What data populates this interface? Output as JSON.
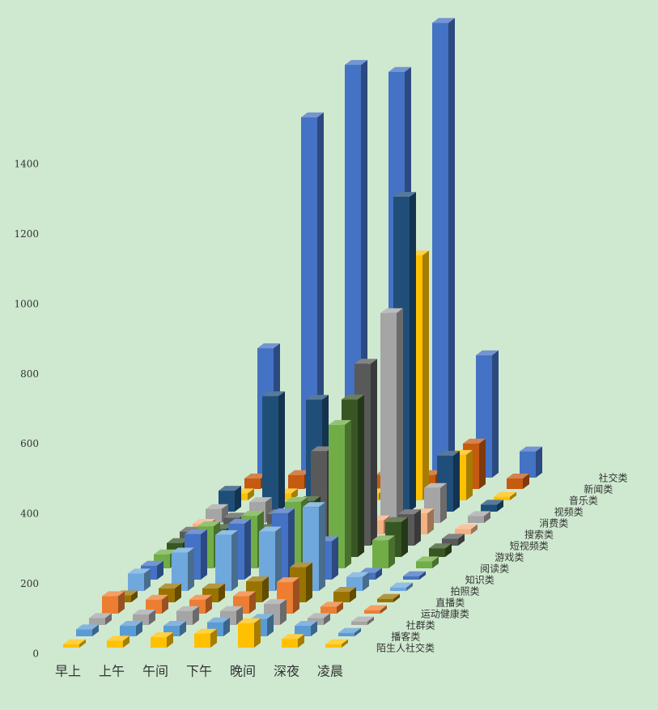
{
  "chart_data": {
    "type": "bar3d",
    "categories": [
      "早上",
      "上午",
      "午间",
      "下午",
      "晚间",
      "深夜",
      "凌晨"
    ],
    "ylim": [
      0,
      1400
    ],
    "yticks": [
      0,
      200,
      400,
      600,
      800,
      1000,
      1200,
      1400
    ],
    "series": [
      {
        "name": "社交类",
        "color": "#4472c4",
        "values": [
          370,
          1030,
          1180,
          1160,
          1300,
          350,
          75
        ]
      },
      {
        "name": "新闻类",
        "color": "#c55a11",
        "values": [
          30,
          40,
          30,
          40,
          40,
          130,
          30
        ]
      },
      {
        "name": "音乐类",
        "color": "#ffc000",
        "values": [
          20,
          20,
          20,
          20,
          700,
          130,
          10
        ]
      },
      {
        "name": "视频类",
        "color": "#1f4e79",
        "values": [
          60,
          330,
          320,
          280,
          900,
          160,
          20
        ]
      },
      {
        "name": "消费类",
        "color": "#a5a5a5",
        "values": [
          40,
          60,
          60,
          60,
          600,
          100,
          20
        ]
      },
      {
        "name": "搜索类",
        "color": "#f4b183",
        "values": [
          30,
          40,
          40,
          40,
          40,
          60,
          15
        ]
      },
      {
        "name": "短视频类",
        "color": "#595959",
        "values": [
          40,
          80,
          90,
          270,
          520,
          90,
          20
        ]
      },
      {
        "name": "游戏类",
        "color": "#375623",
        "values": [
          40,
          80,
          80,
          160,
          450,
          100,
          25
        ]
      },
      {
        "name": "阅读类",
        "color": "#70ad47",
        "values": [
          40,
          120,
          150,
          190,
          410,
          80,
          20
        ]
      },
      {
        "name": "知识类",
        "color": "#4472c4",
        "values": [
          40,
          130,
          160,
          190,
          110,
          20,
          10
        ]
      },
      {
        "name": "拍照类",
        "color": "#6fa8dc",
        "values": [
          50,
          110,
          160,
          170,
          240,
          40,
          10
        ]
      },
      {
        "name": "直播类",
        "color": "#997300",
        "values": [
          20,
          40,
          40,
          60,
          100,
          30,
          10
        ]
      },
      {
        "name": "运动健康类",
        "color": "#ed7d31",
        "values": [
          50,
          40,
          40,
          50,
          90,
          20,
          10
        ]
      },
      {
        "name": "社群类",
        "color": "#a5a5a5",
        "values": [
          20,
          30,
          40,
          40,
          60,
          20,
          10
        ]
      },
      {
        "name": "播客类",
        "color": "#5b9bd5",
        "values": [
          20,
          30,
          30,
          40,
          50,
          30,
          10
        ]
      },
      {
        "name": "陌生人社交类",
        "color": "#ffc000",
        "values": [
          10,
          20,
          30,
          40,
          70,
          25,
          10
        ]
      }
    ]
  }
}
